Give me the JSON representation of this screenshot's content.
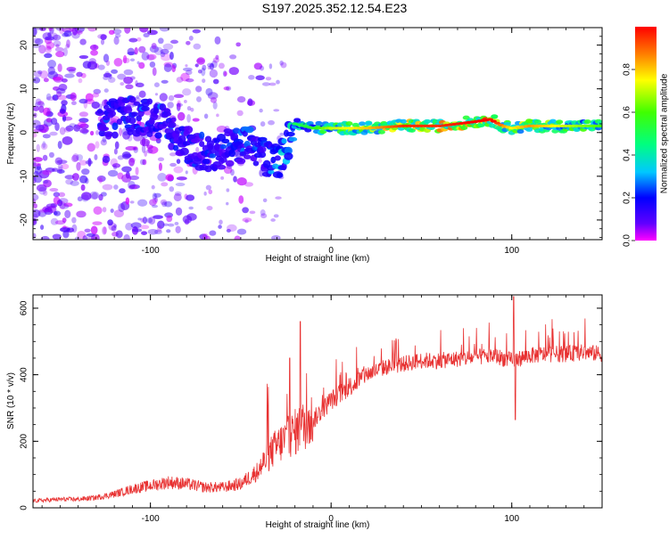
{
  "title": "S197.2025.352.12.54.E23",
  "chart_data": [
    {
      "type": "heatmap",
      "xlabel": "Height of straight line (km)",
      "ylabel": "Frequency (Hz)",
      "xlim": [
        -165,
        150
      ],
      "ylim": [
        -24.5,
        24
      ],
      "xticks": [
        -100,
        0,
        100
      ],
      "yticks": [
        -20,
        -10,
        0,
        10,
        20
      ],
      "colorbar": {
        "label": "Normalized spectral amplitude",
        "range": [
          0,
          1
        ],
        "ticks": [
          "0.0",
          "0.2",
          "0.4",
          "0.6",
          "0.8"
        ],
        "tick_values": [
          0.0,
          0.2,
          0.4,
          0.6,
          0.8
        ]
      },
      "ridge": {
        "x": [
          -125,
          -110,
          -95,
          -85,
          -75,
          -65,
          -55,
          -45,
          -35,
          -28,
          -20,
          -10,
          0,
          10,
          20,
          40,
          60,
          80,
          88,
          95,
          100,
          110,
          130,
          150
        ],
        "y": [
          3,
          4,
          3,
          -1,
          -4,
          -5,
          -3,
          -3,
          -6,
          -6,
          2,
          1,
          1,
          1,
          1,
          1.5,
          1.5,
          2.5,
          3,
          1.5,
          1,
          1.5,
          1.5,
          1.5
        ],
        "amp": [
          0.25,
          0.3,
          0.28,
          0.25,
          0.25,
          0.25,
          0.28,
          0.3,
          0.3,
          0.4,
          0.45,
          0.5,
          0.65,
          0.7,
          0.75,
          0.9,
          0.9,
          0.95,
          1.0,
          0.8,
          0.7,
          0.8,
          0.65,
          0.55
        ]
      }
    },
    {
      "type": "line",
      "xlabel": "Height of straight line (km)",
      "ylabel": "SNR (10 * v/v)",
      "xlim": [
        -165,
        150
      ],
      "ylim": [
        0,
        640
      ],
      "xticks": [
        -100,
        0,
        100
      ],
      "yticks": [
        0,
        200,
        400,
        600
      ],
      "series": [
        {
          "name": "SNR",
          "color": "#e83232",
          "x": [
            -165,
            -150,
            -140,
            -130,
            -120,
            -110,
            -100,
            -90,
            -80,
            -70,
            -60,
            -50,
            -40,
            -35,
            -30,
            -25,
            -20,
            -15,
            -10,
            -5,
            0,
            10,
            20,
            30,
            40,
            50,
            60,
            70,
            80,
            90,
            100,
            110,
            120,
            130,
            140,
            150
          ],
          "y": [
            20,
            25,
            25,
            30,
            40,
            55,
            65,
            75,
            70,
            60,
            60,
            70,
            110,
            150,
            180,
            200,
            220,
            240,
            260,
            290,
            320,
            360,
            400,
            420,
            430,
            440,
            440,
            445,
            450,
            455,
            440,
            455,
            460,
            460,
            465,
            460
          ]
        }
      ],
      "spikes": [
        {
          "x": 102,
          "y": 265
        },
        {
          "x": 101,
          "y": 635
        },
        {
          "x": -17,
          "y": 560
        },
        {
          "x": -23,
          "y": 450
        }
      ]
    }
  ]
}
